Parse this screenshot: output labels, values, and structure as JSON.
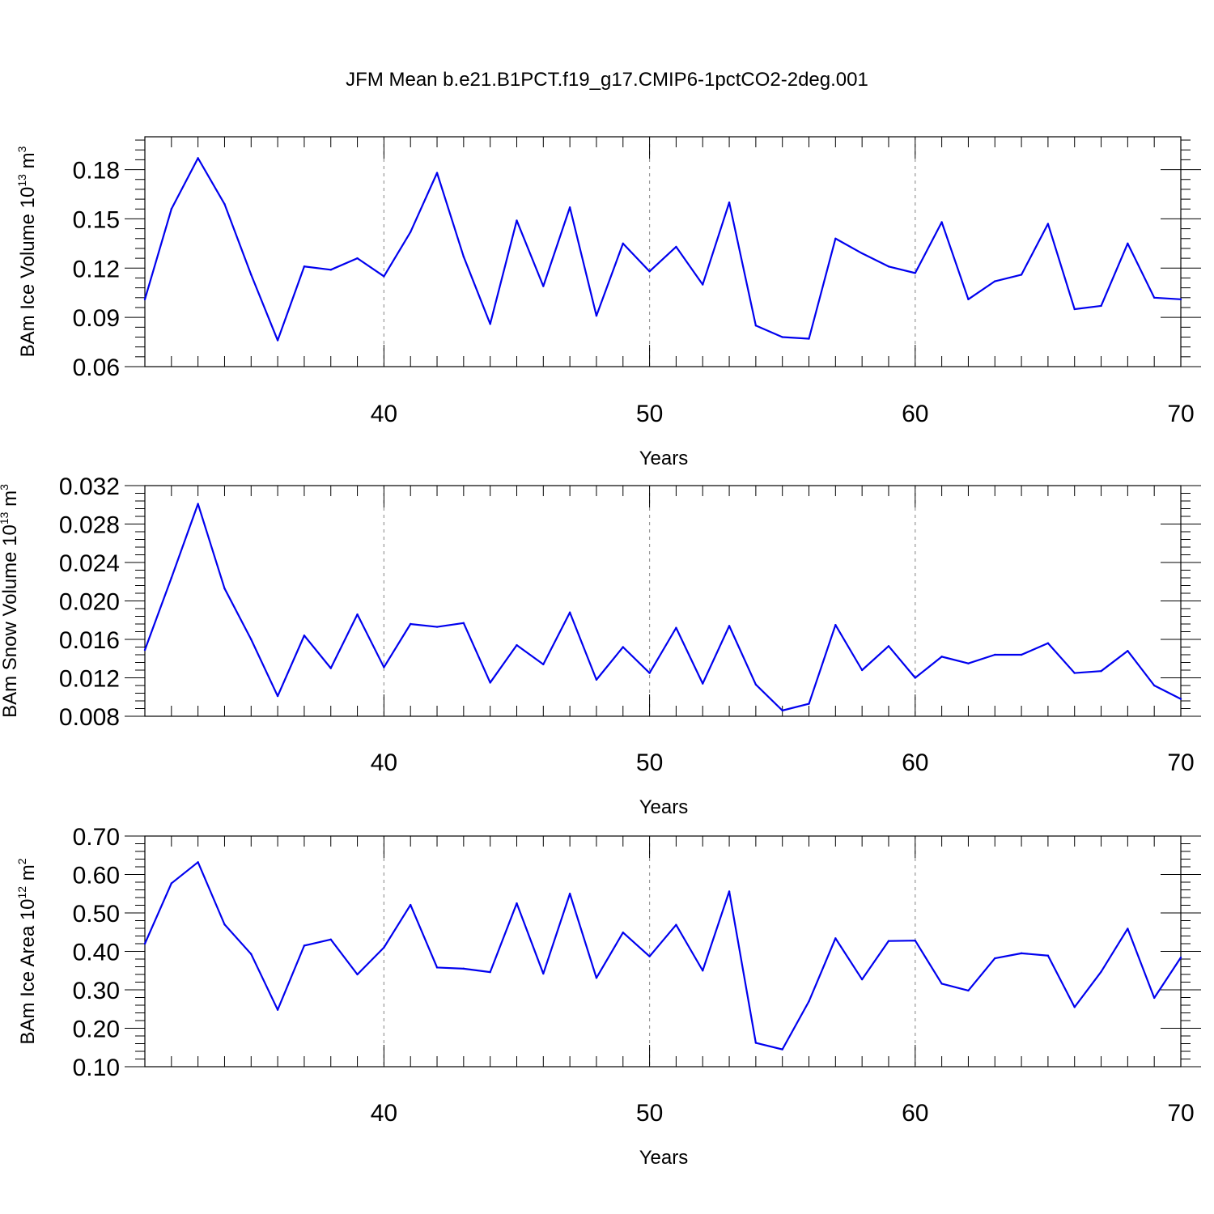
{
  "title": "JFM Mean b.e21.B1PCT.f19_g17.CMIP6-1pctCO2-2deg.001",
  "colors": {
    "line": "#0000ee",
    "axis": "#000000",
    "grid": "#999999"
  },
  "chart_data": [
    {
      "type": "line",
      "xlabel": "Years",
      "ylabel": {
        "prefix": "BAm Ice Volume 10",
        "exp": "13",
        "unit": " m",
        "unit_exp": "3"
      },
      "xlim": [
        31,
        70
      ],
      "ylim": [
        0.06,
        0.2
      ],
      "xticks": [
        40,
        50,
        60,
        70
      ],
      "xtick_labels": [
        "40",
        "50",
        "60",
        "70"
      ],
      "yticks": [
        0.06,
        0.09,
        0.12,
        0.15,
        0.18
      ],
      "ytick_labels": [
        "0.06",
        "0.09",
        "0.12",
        "0.15",
        "0.18"
      ],
      "vgrid": [
        40,
        50,
        60
      ],
      "x": [
        31,
        32,
        33,
        34,
        35,
        36,
        37,
        38,
        39,
        40,
        41,
        42,
        43,
        44,
        45,
        46,
        47,
        48,
        49,
        50,
        51,
        52,
        53,
        54,
        55,
        56,
        57,
        58,
        59,
        60,
        61,
        62,
        63,
        64,
        65,
        66,
        67,
        68,
        69,
        70
      ],
      "values": [
        0.101,
        0.156,
        0.187,
        0.159,
        0.116,
        0.076,
        0.121,
        0.119,
        0.126,
        0.115,
        0.142,
        0.178,
        0.127,
        0.086,
        0.149,
        0.109,
        0.157,
        0.091,
        0.135,
        0.118,
        0.133,
        0.11,
        0.16,
        0.085,
        0.078,
        0.077,
        0.138,
        0.129,
        0.121,
        0.117,
        0.148,
        0.101,
        0.112,
        0.116,
        0.147,
        0.095,
        0.097,
        0.135,
        0.102,
        0.101
      ]
    },
    {
      "type": "line",
      "xlabel": "Years",
      "ylabel": {
        "prefix": "BAm Snow Volume 10",
        "exp": "13",
        "unit": " m",
        "unit_exp": "3"
      },
      "xlim": [
        31,
        70
      ],
      "ylim": [
        0.008,
        0.032
      ],
      "xticks": [
        40,
        50,
        60,
        70
      ],
      "xtick_labels": [
        "40",
        "50",
        "60",
        "70"
      ],
      "yticks": [
        0.008,
        0.012,
        0.016,
        0.02,
        0.024,
        0.028,
        0.032
      ],
      "ytick_labels": [
        "0.008",
        "0.012",
        "0.016",
        "0.020",
        "0.024",
        "0.028",
        "0.032"
      ],
      "vgrid": [
        40,
        50,
        60
      ],
      "x": [
        31,
        32,
        33,
        34,
        35,
        36,
        37,
        38,
        39,
        40,
        41,
        42,
        43,
        44,
        45,
        46,
        47,
        48,
        49,
        50,
        51,
        52,
        53,
        54,
        55,
        56,
        57,
        58,
        59,
        60,
        61,
        62,
        63,
        64,
        65,
        66,
        67,
        68,
        69,
        70
      ],
      "values": [
        0.0149,
        0.0224,
        0.0301,
        0.0213,
        0.016,
        0.0101,
        0.0164,
        0.013,
        0.0186,
        0.0131,
        0.0176,
        0.0173,
        0.0177,
        0.0115,
        0.0154,
        0.0134,
        0.0188,
        0.0118,
        0.0152,
        0.0125,
        0.0172,
        0.0114,
        0.0174,
        0.0113,
        0.0086,
        0.0093,
        0.0175,
        0.0128,
        0.0153,
        0.012,
        0.0142,
        0.0135,
        0.0144,
        0.0144,
        0.0156,
        0.0125,
        0.0127,
        0.0148,
        0.0112,
        0.0098
      ]
    },
    {
      "type": "line",
      "xlabel": "Years",
      "ylabel": {
        "prefix": "BAm Ice Area 10",
        "exp": "12",
        "unit": " m",
        "unit_exp": "2"
      },
      "xlim": [
        31,
        70
      ],
      "ylim": [
        0.1,
        0.7
      ],
      "xticks": [
        40,
        50,
        60,
        70
      ],
      "xtick_labels": [
        "40",
        "50",
        "60",
        "70"
      ],
      "yticks": [
        0.1,
        0.2,
        0.3,
        0.4,
        0.5,
        0.6,
        0.7
      ],
      "ytick_labels": [
        "0.10",
        "0.20",
        "0.30",
        "0.40",
        "0.50",
        "0.60",
        "0.70"
      ],
      "vgrid": [
        40,
        50,
        60
      ],
      "x": [
        31,
        32,
        33,
        34,
        35,
        36,
        37,
        38,
        39,
        40,
        41,
        42,
        43,
        44,
        45,
        46,
        47,
        48,
        49,
        50,
        51,
        52,
        53,
        54,
        55,
        56,
        57,
        58,
        59,
        60,
        61,
        62,
        63,
        64,
        65,
        66,
        67,
        68,
        69,
        70
      ],
      "values": [
        0.42,
        0.577,
        0.632,
        0.47,
        0.393,
        0.248,
        0.415,
        0.431,
        0.34,
        0.41,
        0.521,
        0.358,
        0.355,
        0.346,
        0.525,
        0.342,
        0.55,
        0.331,
        0.449,
        0.387,
        0.469,
        0.35,
        0.556,
        0.162,
        0.145,
        0.27,
        0.434,
        0.327,
        0.427,
        0.428,
        0.316,
        0.298,
        0.382,
        0.395,
        0.389,
        0.255,
        0.347,
        0.459,
        0.279,
        0.384
      ]
    }
  ]
}
